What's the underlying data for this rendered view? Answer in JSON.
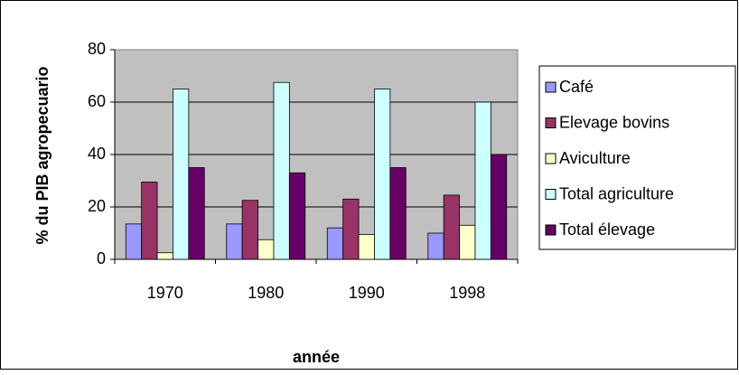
{
  "chart_data": {
    "type": "bar",
    "categories": [
      "1970",
      "1980",
      "1990",
      "1998"
    ],
    "series": [
      {
        "name": "Café",
        "color": "#9999ff",
        "values": [
          13.5,
          13.5,
          12,
          10
        ]
      },
      {
        "name": "Elevage bovins",
        "color": "#993366",
        "values": [
          29.5,
          22.5,
          23,
          24.5
        ]
      },
      {
        "name": "Aviculture",
        "color": "#ffffcc",
        "values": [
          2.5,
          7.5,
          9.5,
          13
        ]
      },
      {
        "name": "Total agriculture",
        "color": "#ccffff",
        "values": [
          65,
          67.5,
          65,
          60
        ]
      },
      {
        "name": "Total élevage",
        "color": "#660066",
        "values": [
          35,
          33,
          35,
          40
        ]
      }
    ],
    "xlabel": "année",
    "ylabel": "% du PIB agropecuario",
    "ylim": [
      0,
      80
    ],
    "yticks": [
      0,
      20,
      40,
      60,
      80
    ],
    "grid": true,
    "legend": "right"
  }
}
